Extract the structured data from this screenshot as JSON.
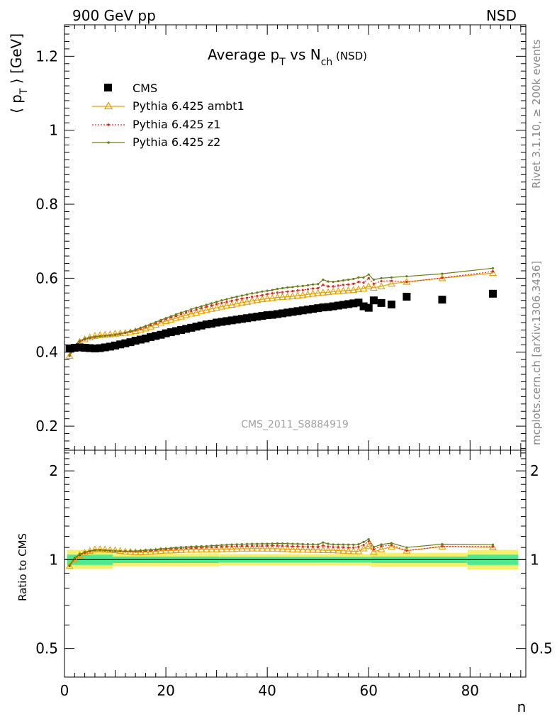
{
  "header": {
    "left": "900 GeV pp",
    "right": "NSD"
  },
  "side": {
    "rivet": "Rivet 3.1.10, ≥ 200k events",
    "mcplots": "mcplots.cern.ch [arXiv:1306.3436]"
  },
  "chart_data": [
    {
      "type": "scatter",
      "title": "Average p_T vs N_ch (NSD)",
      "title_parts": {
        "pre": "Average p",
        "sub1": "T",
        "mid": " vs N",
        "sub2": "ch",
        "post": " (NSD)"
      },
      "ylabel": "⟨ p_T ⟩ [GeV]",
      "ylabel_parts": {
        "pre": "⟨ p",
        "sub": "T",
        "post": " ⟩ [GeV]"
      },
      "xlabel": "n",
      "xlim": [
        0,
        91
      ],
      "ylim": [
        0.135,
        1.285
      ],
      "yticks": [
        0.2,
        0.4,
        0.6,
        0.8,
        1,
        1.2
      ],
      "ytick_labels": [
        "0.2",
        "0.4",
        "0.6",
        "0.8",
        "1",
        "1.2"
      ],
      "annotation": "CMS_2011_S8884919",
      "legend_position": "top-left",
      "series": [
        {
          "name": "CMS",
          "style": "square-marker",
          "color": "#000000",
          "x": [
            1,
            2,
            3,
            4,
            5,
            6,
            7,
            8,
            9,
            10,
            11,
            12,
            13,
            14,
            15,
            16,
            17,
            18,
            19,
            20,
            21,
            22,
            23,
            24,
            25,
            26,
            27,
            28,
            29,
            30,
            31,
            32,
            33,
            34,
            35,
            36,
            37,
            38,
            39,
            40,
            41,
            42,
            43,
            44,
            45,
            46,
            47,
            48,
            49,
            50,
            51,
            52,
            53,
            54,
            55,
            56,
            57,
            58,
            59,
            60,
            61,
            62.5,
            64.5,
            67.5,
            74.5,
            84.5
          ],
          "y": [
            0.41,
            0.412,
            0.413,
            0.412,
            0.411,
            0.41,
            0.411,
            0.413,
            0.415,
            0.418,
            0.421,
            0.424,
            0.427,
            0.431,
            0.434,
            0.437,
            0.441,
            0.444,
            0.447,
            0.451,
            0.454,
            0.457,
            0.46,
            0.463,
            0.466,
            0.469,
            0.472,
            0.475,
            0.477,
            0.48,
            0.482,
            0.484,
            0.486,
            0.488,
            0.49,
            0.492,
            0.494,
            0.496,
            0.498,
            0.5,
            0.501,
            0.503,
            0.505,
            0.507,
            0.509,
            0.511,
            0.513,
            0.515,
            0.517,
            0.519,
            0.521,
            0.522,
            0.524,
            0.526,
            0.528,
            0.53,
            0.532,
            0.534,
            0.524,
            0.52,
            0.54,
            0.533,
            0.529,
            0.55,
            0.542,
            0.558
          ]
        },
        {
          "name": "Pythia 6.425 ambt1",
          "style": "line-open-triangle",
          "color": "#e8a000",
          "x": [
            1,
            2,
            3,
            4,
            5,
            6,
            7,
            8,
            9,
            10,
            11,
            12,
            13,
            14,
            15,
            16,
            17,
            18,
            19,
            20,
            21,
            22,
            23,
            24,
            25,
            26,
            27,
            28,
            29,
            30,
            31,
            32,
            33,
            34,
            35,
            36,
            37,
            38,
            39,
            40,
            41,
            42,
            43,
            44,
            45,
            46,
            47,
            48,
            49,
            50,
            51,
            52,
            53,
            54,
            55,
            56,
            57,
            58,
            59,
            60,
            61,
            62.5,
            64.5,
            67.5,
            74.5,
            84.5
          ],
          "y": [
            0.39,
            0.412,
            0.428,
            0.435,
            0.44,
            0.444,
            0.446,
            0.447,
            0.448,
            0.45,
            0.451,
            0.452,
            0.454,
            0.457,
            0.46,
            0.464,
            0.469,
            0.474,
            0.479,
            0.484,
            0.488,
            0.492,
            0.496,
            0.5,
            0.504,
            0.507,
            0.511,
            0.514,
            0.517,
            0.52,
            0.523,
            0.526,
            0.528,
            0.531,
            0.534,
            0.536,
            0.539,
            0.541,
            0.543,
            0.545,
            0.546,
            0.548,
            0.549,
            0.55,
            0.551,
            0.553,
            0.554,
            0.556,
            0.558,
            0.56,
            0.561,
            0.562,
            0.564,
            0.565,
            0.566,
            0.567,
            0.568,
            0.57,
            0.572,
            0.578,
            0.574,
            0.578,
            0.585,
            0.59,
            0.6,
            0.614
          ]
        },
        {
          "name": "Pythia 6.425 z1",
          "style": "dotted-small-marker",
          "color": "#e8251c",
          "x": [
            1,
            2,
            3,
            4,
            5,
            6,
            7,
            8,
            9,
            10,
            11,
            12,
            13,
            14,
            15,
            16,
            17,
            18,
            19,
            20,
            21,
            22,
            23,
            24,
            25,
            26,
            27,
            28,
            29,
            30,
            31,
            32,
            33,
            34,
            35,
            36,
            37,
            38,
            39,
            40,
            41,
            42,
            43,
            44,
            45,
            46,
            47,
            48,
            49,
            50,
            51,
            52,
            53,
            54,
            55,
            56,
            57,
            58,
            59,
            60,
            61,
            62.5,
            64.5,
            67.5,
            74.5,
            84.5
          ],
          "y": [
            0.39,
            0.415,
            0.428,
            0.434,
            0.438,
            0.441,
            0.443,
            0.444,
            0.445,
            0.447,
            0.449,
            0.452,
            0.455,
            0.459,
            0.463,
            0.468,
            0.473,
            0.478,
            0.484,
            0.489,
            0.494,
            0.498,
            0.503,
            0.507,
            0.511,
            0.515,
            0.519,
            0.523,
            0.526,
            0.53,
            0.533,
            0.536,
            0.539,
            0.542,
            0.545,
            0.547,
            0.55,
            0.552,
            0.554,
            0.557,
            0.559,
            0.561,
            0.562,
            0.564,
            0.565,
            0.567,
            0.568,
            0.57,
            0.572,
            0.573,
            0.582,
            0.578,
            0.578,
            0.58,
            0.582,
            0.583,
            0.585,
            0.59,
            0.588,
            0.6,
            0.585,
            0.592,
            0.593,
            0.59,
            0.601,
            0.618
          ]
        },
        {
          "name": "Pythia 6.425 z2",
          "style": "line-small-marker",
          "color": "#6b7d14",
          "x": [
            1,
            2,
            3,
            4,
            5,
            6,
            7,
            8,
            9,
            10,
            11,
            12,
            13,
            14,
            15,
            16,
            17,
            18,
            19,
            20,
            21,
            22,
            23,
            24,
            25,
            26,
            27,
            28,
            29,
            30,
            31,
            32,
            33,
            34,
            35,
            36,
            37,
            38,
            39,
            40,
            41,
            42,
            43,
            44,
            45,
            46,
            47,
            48,
            49,
            50,
            51,
            52,
            53,
            54,
            55,
            56,
            57,
            58,
            59,
            60,
            61,
            62.5,
            64.5,
            67.5,
            74.5,
            84.5
          ],
          "y": [
            0.392,
            0.418,
            0.431,
            0.437,
            0.44,
            0.442,
            0.443,
            0.444,
            0.445,
            0.447,
            0.45,
            0.453,
            0.457,
            0.461,
            0.466,
            0.471,
            0.476,
            0.481,
            0.487,
            0.492,
            0.497,
            0.502,
            0.507,
            0.511,
            0.516,
            0.52,
            0.524,
            0.528,
            0.532,
            0.536,
            0.54,
            0.543,
            0.547,
            0.55,
            0.553,
            0.556,
            0.559,
            0.561,
            0.564,
            0.566,
            0.568,
            0.571,
            0.573,
            0.575,
            0.576,
            0.578,
            0.579,
            0.581,
            0.583,
            0.584,
            0.596,
            0.591,
            0.59,
            0.592,
            0.594,
            0.596,
            0.598,
            0.602,
            0.602,
            0.61,
            0.596,
            0.6,
            0.602,
            0.605,
            0.612,
            0.627
          ]
        }
      ]
    },
    {
      "type": "line",
      "ylabel": "Ratio to CMS",
      "xlabel": "n",
      "xlim": [
        0,
        91
      ],
      "ylim": [
        0.4,
        2.35
      ],
      "log_y": true,
      "yticks": [
        0.5,
        1,
        2
      ],
      "ytick_labels": [
        "0.5",
        "1",
        "2"
      ],
      "xticks": [
        0,
        20,
        40,
        60,
        80
      ],
      "xtick_labels": [
        "0",
        "20",
        "40",
        "60",
        "80"
      ],
      "reference_line": 1,
      "bands": {
        "stat_color": "#50e890",
        "total_color": "#f5f06e",
        "segments": [
          {
            "x": [
              0.5,
              9.5
            ],
            "stat": [
              0.96,
              1.04
            ],
            "total": [
              0.93,
              1.08
            ]
          },
          {
            "x": [
              9.5,
              30.5
            ],
            "stat": [
              0.975,
              1.025
            ],
            "total": [
              0.95,
              1.05
            ]
          },
          {
            "x": [
              30.5,
              60.5
            ],
            "stat": [
              0.978,
              1.022
            ],
            "total": [
              0.955,
              1.045
            ]
          },
          {
            "x": [
              60.5,
              79.5
            ],
            "stat": [
              0.975,
              1.025
            ],
            "total": [
              0.945,
              1.055
            ]
          },
          {
            "x": [
              79.5,
              89.5
            ],
            "stat": [
              0.96,
              1.04
            ],
            "total": [
              0.925,
              1.08
            ]
          }
        ]
      }
    }
  ]
}
